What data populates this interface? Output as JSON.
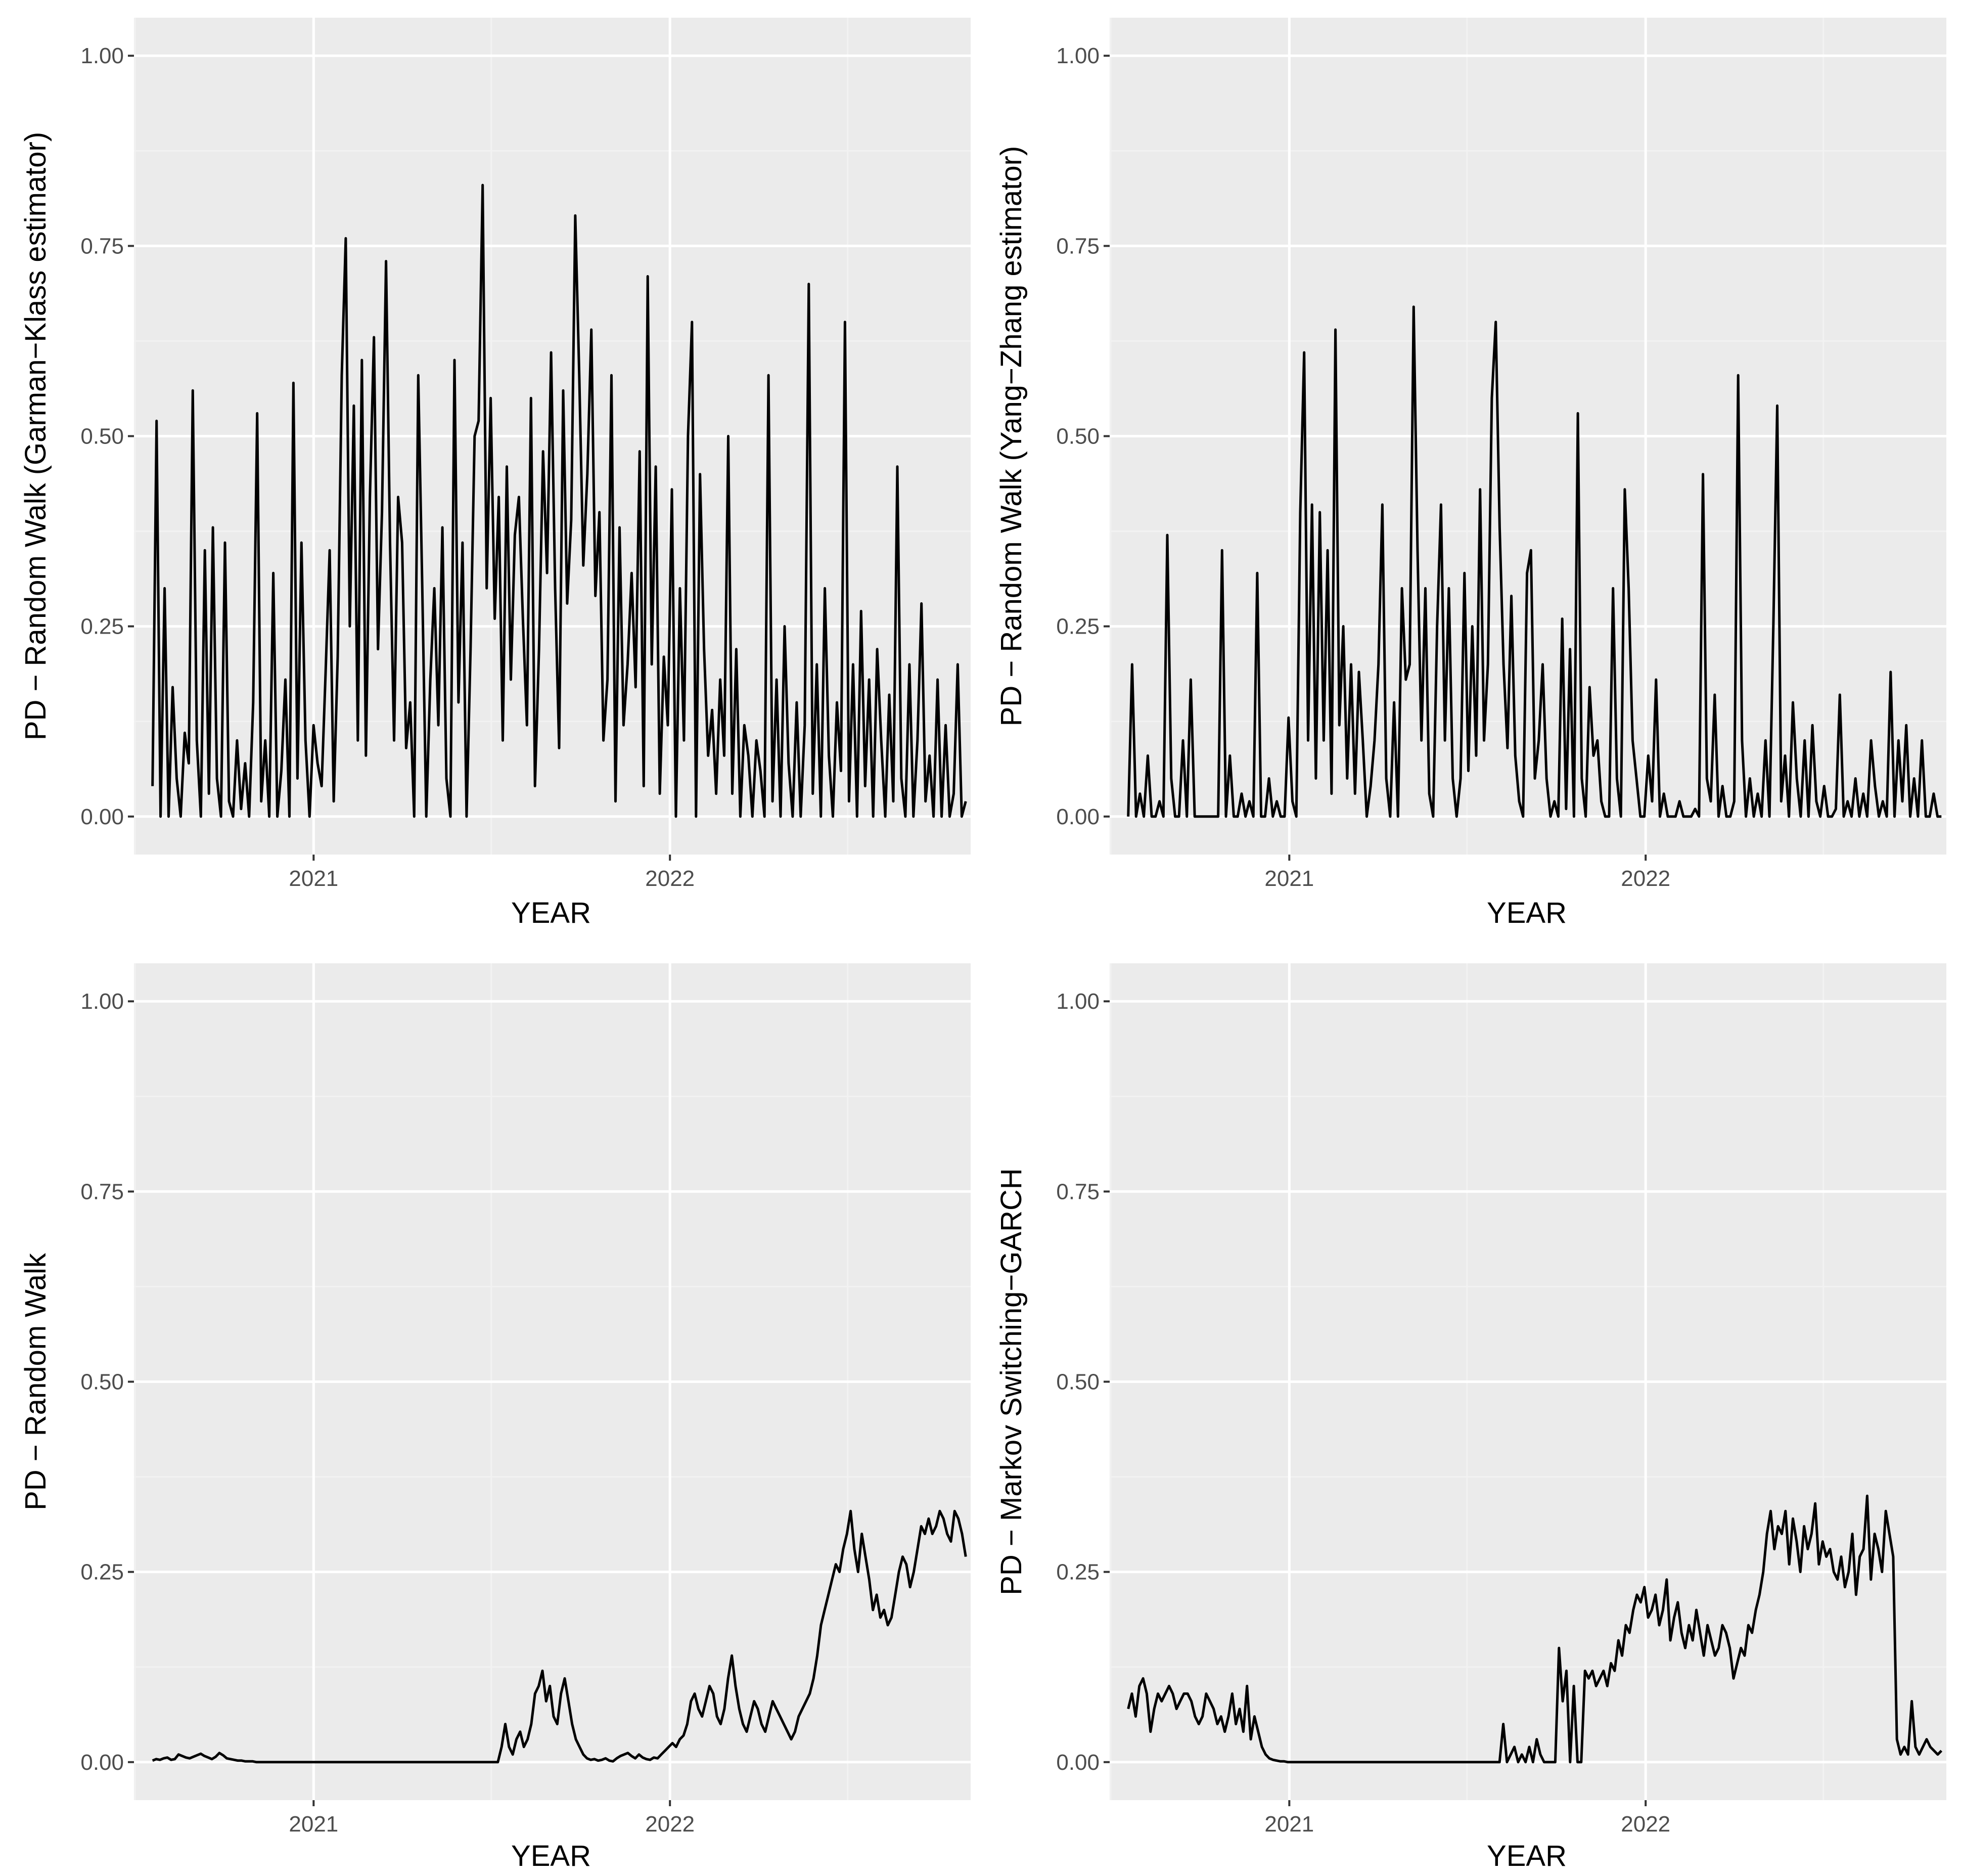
{
  "colors": {
    "panel_bg": "#EBEBEB",
    "grid_major": "#FFFFFF",
    "grid_minor": "#F2F2F2",
    "line": "#000000",
    "tick_text": "#4D4D4D"
  },
  "chart_data": [
    {
      "type": "line",
      "xlabel": "YEAR",
      "ylabel": "PD − Random Walk (Garman−Klass estimator)",
      "x_range": [
        "2020-07-01",
        "2022-11-05"
      ],
      "xticks": [
        "2021",
        "2022"
      ],
      "ylim": [
        0,
        1
      ],
      "yticks": [
        "0.00",
        "0.25",
        "0.50",
        "0.75",
        "1.00"
      ],
      "grid": true,
      "x_start": "2020-07-20",
      "x_end": "2022-10-31",
      "x_step_days": 7,
      "series": [
        {
          "values": [
            0.04,
            0.52,
            0.0,
            0.3,
            0.0,
            0.17,
            0.05,
            0.0,
            0.11,
            0.07,
            0.56,
            0.1,
            0.0,
            0.35,
            0.03,
            0.38,
            0.05,
            0.0,
            0.36,
            0.02,
            0.0,
            0.1,
            0.01,
            0.07,
            0.0,
            0.15,
            0.53,
            0.02,
            0.1,
            0.0,
            0.32,
            0.0,
            0.06,
            0.18,
            0.0,
            0.57,
            0.05,
            0.36,
            0.1,
            0.0,
            0.12,
            0.07,
            0.04,
            0.19,
            0.35,
            0.02,
            0.21,
            0.58,
            0.76,
            0.25,
            0.54,
            0.1,
            0.6,
            0.08,
            0.42,
            0.63,
            0.22,
            0.4,
            0.73,
            0.36,
            0.1,
            0.42,
            0.36,
            0.09,
            0.15,
            0.0,
            0.58,
            0.3,
            0.0,
            0.18,
            0.3,
            0.12,
            0.38,
            0.05,
            0.0,
            0.6,
            0.15,
            0.36,
            0.0,
            0.22,
            0.5,
            0.52,
            0.83,
            0.3,
            0.55,
            0.26,
            0.42,
            0.1,
            0.46,
            0.18,
            0.37,
            0.42,
            0.26,
            0.12,
            0.55,
            0.04,
            0.22,
            0.48,
            0.32,
            0.61,
            0.3,
            0.09,
            0.56,
            0.28,
            0.39,
            0.79,
            0.58,
            0.33,
            0.45,
            0.64,
            0.29,
            0.4,
            0.1,
            0.18,
            0.58,
            0.02,
            0.38,
            0.12,
            0.2,
            0.32,
            0.17,
            0.48,
            0.04,
            0.71,
            0.2,
            0.46,
            0.03,
            0.21,
            0.12,
            0.43,
            0.0,
            0.3,
            0.1,
            0.5,
            0.65,
            0.0,
            0.45,
            0.22,
            0.08,
            0.14,
            0.03,
            0.18,
            0.08,
            0.5,
            0.03,
            0.22,
            0.0,
            0.12,
            0.08,
            0.0,
            0.1,
            0.06,
            0.0,
            0.58,
            0.02,
            0.18,
            0.0,
            0.25,
            0.07,
            0.0,
            0.15,
            0.0,
            0.12,
            0.7,
            0.03,
            0.2,
            0.0,
            0.3,
            0.08,
            0.0,
            0.15,
            0.06,
            0.65,
            0.02,
            0.2,
            0.0,
            0.27,
            0.04,
            0.18,
            0.0,
            0.22,
            0.1,
            0.0,
            0.16,
            0.02,
            0.46,
            0.05,
            0.0,
            0.2,
            0.0,
            0.1,
            0.28,
            0.02,
            0.08,
            0.0,
            0.18,
            0.0,
            0.12,
            0.0,
            0.03,
            0.2,
            0.0,
            0.02
          ]
        }
      ]
    },
    {
      "type": "line",
      "xlabel": "YEAR",
      "ylabel": "PD − Random Walk (Yang−Zhang estimator)",
      "x_range": [
        "2020-07-01",
        "2022-11-05"
      ],
      "xticks": [
        "2021",
        "2022"
      ],
      "ylim": [
        0,
        1
      ],
      "yticks": [
        "0.00",
        "0.25",
        "0.50",
        "0.75",
        "1.00"
      ],
      "grid": true,
      "x_start": "2020-07-20",
      "x_end": "2022-10-31",
      "x_step_days": 7,
      "series": [
        {
          "values": [
            0.0,
            0.2,
            0.0,
            0.03,
            0.0,
            0.08,
            0.0,
            0.0,
            0.02,
            0.0,
            0.37,
            0.05,
            0.0,
            0.0,
            0.1,
            0.0,
            0.18,
            0.0,
            0.0,
            0.0,
            0.0,
            0.0,
            0.0,
            0.0,
            0.35,
            0.0,
            0.08,
            0.0,
            0.0,
            0.03,
            0.0,
            0.02,
            0.0,
            0.32,
            0.0,
            0.0,
            0.05,
            0.0,
            0.02,
            0.0,
            0.0,
            0.13,
            0.02,
            0.0,
            0.4,
            0.61,
            0.1,
            0.41,
            0.05,
            0.4,
            0.1,
            0.35,
            0.03,
            0.64,
            0.12,
            0.25,
            0.05,
            0.2,
            0.03,
            0.19,
            0.1,
            0.0,
            0.04,
            0.1,
            0.2,
            0.41,
            0.05,
            0.0,
            0.15,
            0.0,
            0.3,
            0.18,
            0.2,
            0.67,
            0.35,
            0.1,
            0.3,
            0.03,
            0.0,
            0.25,
            0.41,
            0.1,
            0.3,
            0.05,
            0.0,
            0.05,
            0.32,
            0.06,
            0.25,
            0.08,
            0.43,
            0.1,
            0.2,
            0.55,
            0.65,
            0.38,
            0.2,
            0.09,
            0.29,
            0.08,
            0.02,
            0.0,
            0.32,
            0.35,
            0.05,
            0.1,
            0.2,
            0.05,
            0.0,
            0.02,
            0.0,
            0.26,
            0.01,
            0.22,
            0.0,
            0.53,
            0.05,
            0.0,
            0.17,
            0.08,
            0.1,
            0.02,
            0.0,
            0.0,
            0.3,
            0.05,
            0.0,
            0.43,
            0.3,
            0.1,
            0.05,
            0.0,
            0.0,
            0.08,
            0.02,
            0.18,
            0.0,
            0.03,
            0.0,
            0.0,
            0.0,
            0.02,
            0.0,
            0.0,
            0.0,
            0.01,
            0.0,
            0.45,
            0.05,
            0.02,
            0.16,
            0.0,
            0.04,
            0.0,
            0.0,
            0.02,
            0.58,
            0.1,
            0.0,
            0.05,
            0.0,
            0.03,
            0.0,
            0.1,
            0.0,
            0.25,
            0.54,
            0.02,
            0.08,
            0.0,
            0.15,
            0.05,
            0.0,
            0.1,
            0.0,
            0.12,
            0.02,
            0.0,
            0.04,
            0.0,
            0.0,
            0.01,
            0.16,
            0.0,
            0.02,
            0.0,
            0.05,
            0.0,
            0.03,
            0.0,
            0.1,
            0.04,
            0.0,
            0.02,
            0.0,
            0.19,
            0.0,
            0.1,
            0.02,
            0.12,
            0.0,
            0.05,
            0.0,
            0.1,
            0.0,
            0.0,
            0.03,
            0.0,
            0.0
          ]
        }
      ]
    },
    {
      "type": "line",
      "xlabel": "YEAR",
      "ylabel": "PD − Random Walk",
      "x_range": [
        "2020-07-01",
        "2022-11-05"
      ],
      "xticks": [
        "2021",
        "2022"
      ],
      "ylim": [
        0,
        1
      ],
      "yticks": [
        "0.00",
        "0.25",
        "0.50",
        "0.75",
        "1.00"
      ],
      "grid": true,
      "x_start": "2020-07-20",
      "x_end": "2022-10-31",
      "x_step_days": 7,
      "series": [
        {
          "values": [
            0.002,
            0.004,
            0.003,
            0.005,
            0.006,
            0.003,
            0.004,
            0.01,
            0.008,
            0.006,
            0.005,
            0.007,
            0.009,
            0.011,
            0.008,
            0.006,
            0.004,
            0.007,
            0.012,
            0.009,
            0.005,
            0.004,
            0.003,
            0.002,
            0.002,
            0.001,
            0.001,
            0.001,
            0.0,
            0.0,
            0.0,
            0.0,
            0.0,
            0.0,
            0.0,
            0.0,
            0.0,
            0.0,
            0.0,
            0.0,
            0.0,
            0.0,
            0.0,
            0.0,
            0.0,
            0.0,
            0.0,
            0.0,
            0.0,
            0.0,
            0.0,
            0.0,
            0.0,
            0.0,
            0.0,
            0.0,
            0.0,
            0.0,
            0.0,
            0.0,
            0.0,
            0.0,
            0.0,
            0.0,
            0.0,
            0.0,
            0.0,
            0.0,
            0.0,
            0.0,
            0.0,
            0.0,
            0.0,
            0.0,
            0.0,
            0.0,
            0.0,
            0.0,
            0.0,
            0.0,
            0.0,
            0.0,
            0.0,
            0.0,
            0.0,
            0.0,
            0.0,
            0.0,
            0.0,
            0.0,
            0.0,
            0.0,
            0.0,
            0.0,
            0.02,
            0.05,
            0.02,
            0.01,
            0.03,
            0.04,
            0.02,
            0.03,
            0.05,
            0.09,
            0.1,
            0.12,
            0.08,
            0.1,
            0.06,
            0.05,
            0.09,
            0.11,
            0.08,
            0.05,
            0.03,
            0.02,
            0.01,
            0.005,
            0.003,
            0.004,
            0.002,
            0.003,
            0.005,
            0.002,
            0.001,
            0.005,
            0.008,
            0.01,
            0.012,
            0.008,
            0.005,
            0.01,
            0.006,
            0.004,
            0.003,
            0.006,
            0.005,
            0.01,
            0.015,
            0.02,
            0.025,
            0.02,
            0.03,
            0.035,
            0.05,
            0.08,
            0.09,
            0.07,
            0.06,
            0.08,
            0.1,
            0.09,
            0.06,
            0.05,
            0.07,
            0.11,
            0.14,
            0.1,
            0.07,
            0.05,
            0.04,
            0.06,
            0.08,
            0.07,
            0.05,
            0.04,
            0.06,
            0.08,
            0.07,
            0.06,
            0.05,
            0.04,
            0.03,
            0.04,
            0.06,
            0.07,
            0.08,
            0.09,
            0.11,
            0.14,
            0.18,
            0.2,
            0.22,
            0.24,
            0.26,
            0.25,
            0.28,
            0.3,
            0.33,
            0.28,
            0.25,
            0.3,
            0.27,
            0.24,
            0.2,
            0.22,
            0.19,
            0.2,
            0.18,
            0.19,
            0.22,
            0.25,
            0.27,
            0.26,
            0.23,
            0.25,
            0.28,
            0.31,
            0.3,
            0.32,
            0.3,
            0.31,
            0.33,
            0.32,
            0.3,
            0.29,
            0.33,
            0.32,
            0.3,
            0.27
          ]
        }
      ]
    },
    {
      "type": "line",
      "xlabel": "YEAR",
      "ylabel": "PD − Markov Switching−GARCH",
      "x_range": [
        "2020-07-01",
        "2022-11-05"
      ],
      "xticks": [
        "2021",
        "2022"
      ],
      "ylim": [
        0,
        1
      ],
      "yticks": [
        "0.00",
        "0.25",
        "0.50",
        "0.75",
        "1.00"
      ],
      "grid": true,
      "x_start": "2020-07-20",
      "x_end": "2022-10-31",
      "x_step_days": 7,
      "series": [
        {
          "values": [
            0.07,
            0.09,
            0.06,
            0.1,
            0.11,
            0.09,
            0.04,
            0.07,
            0.09,
            0.08,
            0.09,
            0.1,
            0.09,
            0.07,
            0.08,
            0.09,
            0.09,
            0.08,
            0.06,
            0.05,
            0.06,
            0.09,
            0.08,
            0.07,
            0.05,
            0.06,
            0.04,
            0.06,
            0.09,
            0.05,
            0.07,
            0.04,
            0.1,
            0.03,
            0.06,
            0.04,
            0.02,
            0.01,
            0.005,
            0.003,
            0.002,
            0.001,
            0.001,
            0.0,
            0.0,
            0.0,
            0.0,
            0.0,
            0.0,
            0.0,
            0.0,
            0.0,
            0.0,
            0.0,
            0.0,
            0.0,
            0.0,
            0.0,
            0.0,
            0.0,
            0.0,
            0.0,
            0.0,
            0.0,
            0.0,
            0.0,
            0.0,
            0.0,
            0.0,
            0.0,
            0.0,
            0.0,
            0.0,
            0.0,
            0.0,
            0.0,
            0.0,
            0.0,
            0.0,
            0.0,
            0.0,
            0.0,
            0.0,
            0.0,
            0.0,
            0.0,
            0.0,
            0.0,
            0.0,
            0.0,
            0.0,
            0.0,
            0.0,
            0.0,
            0.0,
            0.0,
            0.0,
            0.0,
            0.0,
            0.0,
            0.0,
            0.05,
            0.0,
            0.01,
            0.02,
            0.0,
            0.01,
            0.0,
            0.02,
            0.0,
            0.03,
            0.01,
            0.0,
            0.0,
            0.0,
            0.0,
            0.15,
            0.08,
            0.12,
            0.0,
            0.1,
            0.0,
            0.0,
            0.12,
            0.11,
            0.12,
            0.1,
            0.11,
            0.12,
            0.1,
            0.13,
            0.12,
            0.16,
            0.14,
            0.18,
            0.17,
            0.2,
            0.22,
            0.21,
            0.23,
            0.19,
            0.2,
            0.22,
            0.18,
            0.2,
            0.24,
            0.16,
            0.19,
            0.21,
            0.17,
            0.15,
            0.18,
            0.16,
            0.2,
            0.17,
            0.14,
            0.18,
            0.16,
            0.14,
            0.15,
            0.18,
            0.17,
            0.15,
            0.11,
            0.13,
            0.15,
            0.14,
            0.18,
            0.17,
            0.2,
            0.22,
            0.25,
            0.3,
            0.33,
            0.28,
            0.31,
            0.3,
            0.33,
            0.26,
            0.32,
            0.29,
            0.25,
            0.31,
            0.28,
            0.3,
            0.34,
            0.26,
            0.29,
            0.27,
            0.28,
            0.25,
            0.24,
            0.27,
            0.23,
            0.25,
            0.3,
            0.22,
            0.27,
            0.28,
            0.35,
            0.24,
            0.3,
            0.28,
            0.25,
            0.33,
            0.3,
            0.27,
            0.03,
            0.01,
            0.02,
            0.01,
            0.08,
            0.02,
            0.01,
            0.02,
            0.03,
            0.02,
            0.015,
            0.01,
            0.015
          ]
        }
      ]
    }
  ]
}
